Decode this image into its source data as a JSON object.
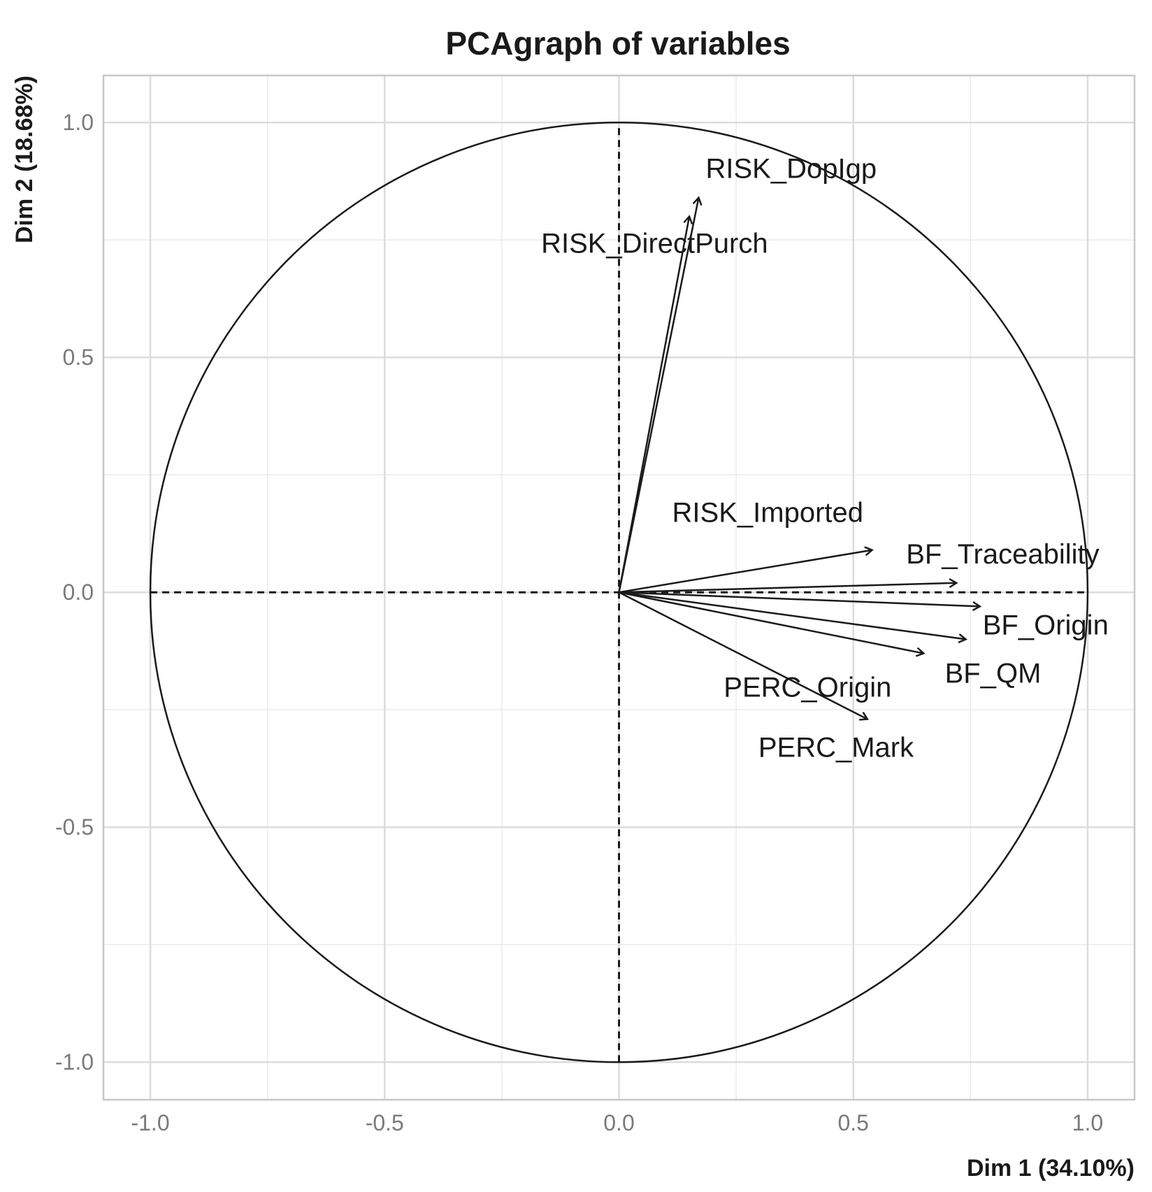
{
  "chart_data": {
    "type": "scatter",
    "title": "PCAgraph of variables",
    "xlabel": "Dim 1 (34.10%)",
    "ylabel": "Dim 2 (18.68%)",
    "xlim": [
      -1.1,
      1.1
    ],
    "ylim": [
      -1.08,
      1.1
    ],
    "x_ticks": [
      -1.0,
      -0.5,
      0.0,
      0.5,
      1.0
    ],
    "x_tick_labels": [
      "-1.0",
      "-0.5",
      "0.0",
      "0.5",
      "1.0"
    ],
    "y_ticks": [
      -1.0,
      -0.5,
      0.0,
      0.5,
      1.0
    ],
    "y_tick_labels": [
      "-1.0",
      "-0.5",
      "0.0",
      "0.5",
      "1.0"
    ],
    "grid": true,
    "unit_circle": true,
    "variables": [
      {
        "name": "RISK_DopIgp",
        "x": 0.17,
        "y": 0.84
      },
      {
        "name": "RISK_DirectPurch",
        "x": 0.15,
        "y": 0.8
      },
      {
        "name": "RISK_Imported",
        "x": 0.54,
        "y": 0.09
      },
      {
        "name": "BF_Traceability",
        "x": 0.72,
        "y": 0.02
      },
      {
        "name": "BF_Origin",
        "x": 0.77,
        "y": -0.03
      },
      {
        "name": "BF_QM",
        "x": 0.74,
        "y": -0.1
      },
      {
        "name": "PERC_Origin",
        "x": 0.65,
        "y": -0.13
      },
      {
        "name": "PERC_Mark",
        "x": 0.53,
        "y": -0.27
      }
    ]
  }
}
